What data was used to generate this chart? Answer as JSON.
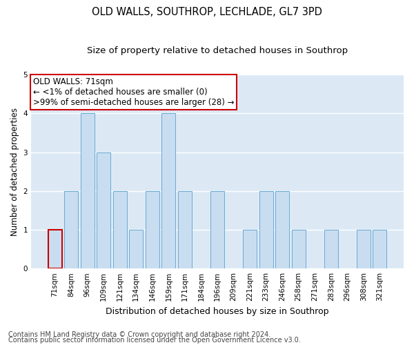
{
  "title": "OLD WALLS, SOUTHROP, LECHLADE, GL7 3PD",
  "subtitle": "Size of property relative to detached houses in Southrop",
  "xlabel": "Distribution of detached houses by size in Southrop",
  "ylabel": "Number of detached properties",
  "categories": [
    "71sqm",
    "84sqm",
    "96sqm",
    "109sqm",
    "121sqm",
    "134sqm",
    "146sqm",
    "159sqm",
    "171sqm",
    "184sqm",
    "196sqm",
    "209sqm",
    "221sqm",
    "233sqm",
    "246sqm",
    "258sqm",
    "271sqm",
    "283sqm",
    "296sqm",
    "308sqm",
    "321sqm"
  ],
  "values": [
    1,
    2,
    4,
    3,
    2,
    1,
    2,
    4,
    2,
    0,
    2,
    0,
    1,
    2,
    2,
    1,
    0,
    1,
    0,
    1,
    1
  ],
  "highlight_index": 0,
  "bar_color": "#c9ddf0",
  "bar_edge_color": "#6aaad4",
  "highlight_bar_edge_color": "#cc0000",
  "annotation_line1": "OLD WALLS: 71sqm",
  "annotation_line2": "← <1% of detached houses are smaller (0)",
  "annotation_line3": ">99% of semi-detached houses are larger (28) →",
  "annotation_box_edge_color": "#cc0000",
  "annotation_box_fill": "#ffffff",
  "ylim": [
    0,
    5
  ],
  "yticks": [
    0,
    1,
    2,
    3,
    4,
    5
  ],
  "grid_color": "#ffffff",
  "bg_color": "#dce9f5",
  "footer_line1": "Contains HM Land Registry data © Crown copyright and database right 2024.",
  "footer_line2": "Contains public sector information licensed under the Open Government Licence v3.0.",
  "title_fontsize": 10.5,
  "subtitle_fontsize": 9.5,
  "xlabel_fontsize": 9,
  "ylabel_fontsize": 8.5,
  "tick_fontsize": 7.5,
  "annotation_fontsize": 8.5,
  "footer_fontsize": 7
}
